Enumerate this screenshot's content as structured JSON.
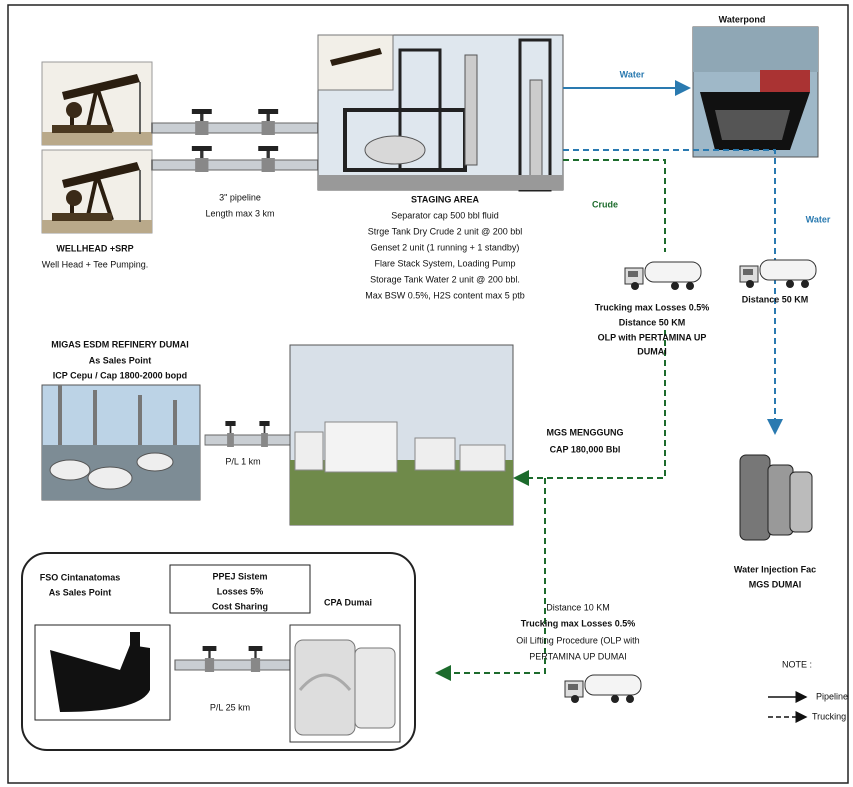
{
  "wellhead": {
    "title": "WELLHEAD +SRP",
    "subtitle": "Well Head + Tee Pumping."
  },
  "pipeline_3in": {
    "line1": "3\" pipeline",
    "line2": "Length max 3 km"
  },
  "staging_area": {
    "title": "STAGING  AREA",
    "details": [
      "Separator  cap 500 bbl fluid",
      "Strge Tank Dry Crude 2 unit @ 200 bbl",
      "Genset  2 unit (1 running + 1 standby)",
      "Flare Stack System, Loading Pump",
      "Storage  Tank Water  2 unit @ 200 bbl.",
      "Max BSW 0.5%, H2S content max 5 ptb"
    ]
  },
  "waterpond": {
    "label": "Waterpond"
  },
  "water_flow_top": "Water",
  "crude_flow": "Crude",
  "water_flow_right": "Water",
  "crude_trucking": {
    "lines": [
      "Trucking max Losses 0.5%",
      "Distance  50 KM",
      "OLP with PERTAMINA  UP",
      "DUMAI"
    ]
  },
  "water_trucking": {
    "label": "Distance 50 KM"
  },
  "refinery": {
    "lines": [
      "MIGAS ESDM  REFINERY  DUMAI",
      "As Sales  Point",
      "ICP Cepu / Cap 1800-2000 bopd"
    ]
  },
  "pipeline_1km": "P/L 1 km",
  "mgs_menggung": {
    "lines": [
      "MGS MENGGUNG",
      "CAP 180,000 Bbl"
    ]
  },
  "water_injection": {
    "lines": [
      "Water  Injection  Fac",
      "MGS DUMAI"
    ]
  },
  "fso": {
    "lines": [
      "FSO Cintanatomas",
      "As Sales Point"
    ]
  },
  "ppej": {
    "lines": [
      "PPEJ Sistem",
      "Losses 5%",
      "Cost Sharing"
    ]
  },
  "cpa": {
    "label": "CPA Dumai"
  },
  "pipeline_25km": "P/L 25 km",
  "fso_trucking": {
    "lines": [
      "Distance 10 KM",
      "Trucking  max  Losses 0.5%",
      "Oil Lifting Procedure (OLP with",
      "PERTAMINA  UP DUMAI"
    ]
  },
  "legend": {
    "title": "NOTE :",
    "pipeline": "Pipeline",
    "trucking": "Trucking"
  }
}
